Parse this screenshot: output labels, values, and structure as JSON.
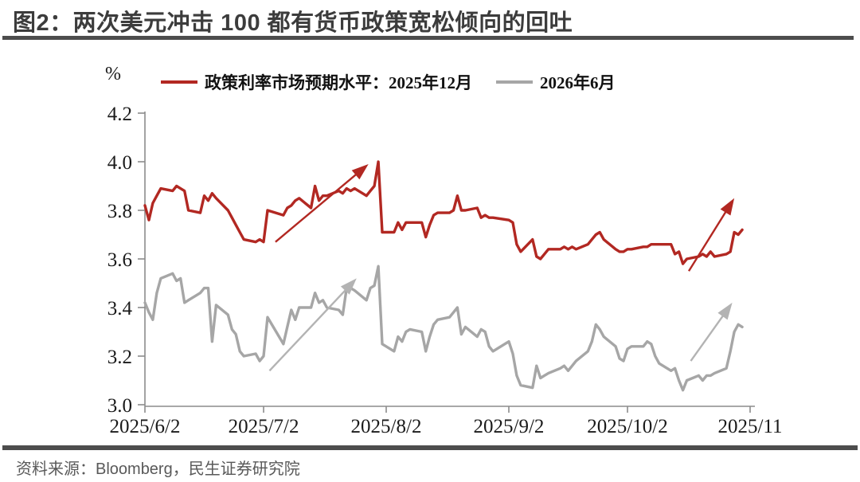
{
  "page": {
    "title": "图2：两次美元冲击 100 都有货币政策宽松倾向的回吐",
    "source": "资料来源：Bloomberg，民生证券研究院"
  },
  "legend": {
    "series1": "政策利率市场预期水平：2025年12月",
    "series2": "2026年6月"
  },
  "axis_unit": "%",
  "colors": {
    "red": "#B22822",
    "gray": "#A6A6A6",
    "arrow_gray": "#B3B3B3",
    "axis": "#8C8C8C",
    "tick_label": "#1A1A1A",
    "title": "#3C3C3C",
    "rule": "#4D4D4D",
    "source": "#595959"
  },
  "chart_data": {
    "type": "line",
    "title": "图2：两次美元冲击 100 都有货币政策宽松倾向的回吐",
    "ylabel": "%",
    "ylim": [
      3.0,
      4.2
    ],
    "day_range": [
      0,
      153
    ],
    "grid": false,
    "legend_position": "top",
    "y_ticks": [
      4.2,
      4.0,
      3.8,
      3.6,
      3.4,
      3.2,
      3.0
    ],
    "x_ticks": [
      {
        "day": 0,
        "label": "2025/6/2"
      },
      {
        "day": 30,
        "label": "2025/7/2"
      },
      {
        "day": 61,
        "label": "2025/8/2"
      },
      {
        "day": 92,
        "label": "2025/9/2"
      },
      {
        "day": 122,
        "label": "2025/10/2"
      },
      {
        "day": 153,
        "label": "2025/11"
      }
    ],
    "days": [
      0,
      1,
      2,
      3,
      4,
      7,
      8,
      9,
      10,
      11,
      14,
      15,
      16,
      17,
      18,
      21,
      22,
      23,
      24,
      25,
      28,
      29,
      30,
      31,
      35,
      36,
      37,
      38,
      39,
      42,
      43,
      44,
      45,
      46,
      49,
      50,
      51,
      52,
      53,
      56,
      57,
      58,
      59,
      60,
      63,
      64,
      65,
      66,
      67,
      70,
      71,
      72,
      73,
      74,
      77,
      78,
      79,
      80,
      81,
      84,
      85,
      86,
      87,
      88,
      92,
      93,
      94,
      95,
      98,
      99,
      100,
      101,
      102,
      105,
      106,
      107,
      108,
      109,
      112,
      113,
      114,
      115,
      116,
      119,
      120,
      121,
      122,
      123,
      126,
      127,
      128,
      129,
      130,
      133,
      134,
      135,
      136,
      137,
      140,
      141,
      142,
      143,
      144,
      147,
      148,
      149,
      150,
      151
    ],
    "series": [
      {
        "name": "政策利率市场预期水平：2025年12月",
        "color_key": "red",
        "values": [
          3.82,
          3.76,
          3.83,
          3.86,
          3.89,
          3.88,
          3.9,
          3.89,
          3.88,
          3.8,
          3.79,
          3.86,
          3.84,
          3.87,
          3.85,
          3.8,
          3.77,
          3.74,
          3.71,
          3.68,
          3.67,
          3.68,
          3.67,
          3.8,
          3.78,
          3.81,
          3.82,
          3.84,
          3.85,
          3.81,
          3.9,
          3.84,
          3.86,
          3.86,
          3.88,
          3.87,
          3.89,
          3.88,
          3.89,
          3.86,
          3.88,
          3.9,
          4.0,
          3.71,
          3.71,
          3.75,
          3.72,
          3.75,
          3.75,
          3.75,
          3.69,
          3.74,
          3.78,
          3.79,
          3.79,
          3.8,
          3.86,
          3.8,
          3.8,
          3.81,
          3.77,
          3.78,
          3.77,
          3.77,
          3.76,
          3.75,
          3.66,
          3.63,
          3.68,
          3.61,
          3.6,
          3.62,
          3.64,
          3.64,
          3.65,
          3.64,
          3.65,
          3.64,
          3.66,
          3.68,
          3.7,
          3.71,
          3.68,
          3.64,
          3.63,
          3.63,
          3.64,
          3.64,
          3.65,
          3.65,
          3.66,
          3.66,
          3.66,
          3.66,
          3.62,
          3.63,
          3.58,
          3.6,
          3.61,
          3.62,
          3.61,
          3.63,
          3.61,
          3.62,
          3.63,
          3.71,
          3.7,
          3.72
        ]
      },
      {
        "name": "2026年6月",
        "color_key": "gray",
        "values": [
          3.42,
          3.38,
          3.35,
          3.46,
          3.52,
          3.54,
          3.51,
          3.52,
          3.42,
          3.43,
          3.46,
          3.48,
          3.48,
          3.26,
          3.41,
          3.37,
          3.31,
          3.29,
          3.22,
          3.2,
          3.21,
          3.18,
          3.2,
          3.36,
          3.25,
          3.32,
          3.39,
          3.35,
          3.4,
          3.4,
          3.46,
          3.42,
          3.43,
          3.4,
          3.39,
          3.37,
          3.48,
          3.48,
          3.47,
          3.43,
          3.48,
          3.49,
          3.57,
          3.25,
          3.22,
          3.28,
          3.26,
          3.3,
          3.31,
          3.3,
          3.22,
          3.28,
          3.33,
          3.35,
          3.36,
          3.38,
          3.4,
          3.29,
          3.32,
          3.28,
          3.31,
          3.3,
          3.24,
          3.22,
          3.26,
          3.21,
          3.12,
          3.08,
          3.07,
          3.16,
          3.11,
          3.12,
          3.13,
          3.15,
          3.16,
          3.14,
          3.16,
          3.18,
          3.22,
          3.26,
          3.33,
          3.31,
          3.28,
          3.24,
          3.19,
          3.18,
          3.23,
          3.24,
          3.24,
          3.26,
          3.25,
          3.2,
          3.17,
          3.14,
          3.15,
          3.1,
          3.06,
          3.1,
          3.12,
          3.1,
          3.12,
          3.12,
          3.13,
          3.15,
          3.22,
          3.3,
          3.33,
          3.32
        ]
      }
    ],
    "annotations": {
      "arrows": [
        {
          "name": "red-uptrend-july",
          "color_key": "red",
          "from": [
            33.0,
            3.67
          ],
          "to": [
            56.5,
            3.99
          ]
        },
        {
          "name": "gray-uptrend-july",
          "color_key": "arrow_gray",
          "from": [
            31.5,
            3.14
          ],
          "to": [
            53.5,
            3.52
          ]
        },
        {
          "name": "red-uptrend-october",
          "color_key": "red",
          "from": [
            137.5,
            3.55
          ],
          "to": [
            149.0,
            3.85
          ]
        },
        {
          "name": "gray-uptrend-october",
          "color_key": "arrow_gray",
          "from": [
            138.0,
            3.18
          ],
          "to": [
            148.5,
            3.42
          ]
        }
      ]
    }
  }
}
